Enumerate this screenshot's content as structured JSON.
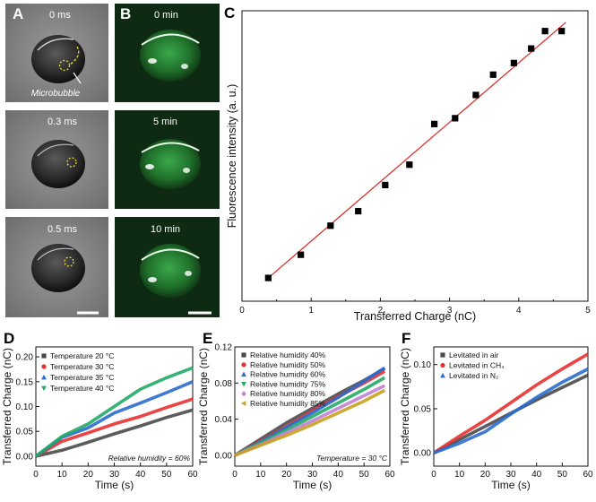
{
  "panels": {
    "A": {
      "label": "A",
      "frames": [
        {
          "time": "0 ms",
          "annotation": "Microbubble"
        },
        {
          "time": "0.3 ms"
        },
        {
          "time": "0.5 ms"
        }
      ]
    },
    "B": {
      "label": "B",
      "frames": [
        {
          "time": "0 min"
        },
        {
          "time": "5 min"
        },
        {
          "time": "10 min"
        }
      ]
    }
  },
  "chart_data": [
    {
      "panel": "C",
      "type": "scatter",
      "xlabel": "Transferred Charge (nC)",
      "ylabel": "Fluorescence intensity (a. u.)",
      "xlim": [
        0,
        5
      ],
      "xticks": [
        "0",
        "1",
        "2",
        "3",
        "4",
        "5"
      ],
      "marker_color": "#000000",
      "fit_color": "#e02020",
      "points": [
        [
          0.38,
          0.08
        ],
        [
          0.85,
          0.16
        ],
        [
          1.28,
          0.26
        ],
        [
          1.68,
          0.31
        ],
        [
          2.07,
          0.4
        ],
        [
          2.42,
          0.47
        ],
        [
          2.78,
          0.61
        ],
        [
          3.08,
          0.63
        ],
        [
          3.38,
          0.71
        ],
        [
          3.63,
          0.78
        ],
        [
          3.93,
          0.82
        ],
        [
          4.18,
          0.87
        ],
        [
          4.38,
          0.93
        ],
        [
          4.62,
          0.93
        ]
      ],
      "fit": [
        [
          0.38,
          0.08
        ],
        [
          4.68,
          0.96
        ]
      ]
    },
    {
      "panel": "D",
      "type": "line",
      "xlabel": "Time (s)",
      "ylabel": "Transferred Charge (nC)",
      "xlim": [
        0,
        60
      ],
      "ylim": [
        -0.02,
        0.22
      ],
      "xticks": [
        "0",
        "10",
        "20",
        "30",
        "40",
        "50",
        "60"
      ],
      "yticks": [
        "0.00",
        "0.05",
        "0.10",
        "0.15",
        "0.20"
      ],
      "note": "Relative humidity = 60%",
      "series": [
        {
          "name": "Temperature 20 °C",
          "marker": "square",
          "color": "#4a4a4a",
          "points": [
            [
              0,
              0.0
            ],
            [
              10,
              0.012
            ],
            [
              20,
              0.028
            ],
            [
              30,
              0.045
            ],
            [
              40,
              0.061
            ],
            [
              50,
              0.078
            ],
            [
              60,
              0.093
            ]
          ]
        },
        {
          "name": "Temperature 30 °C",
          "marker": "circle",
          "color": "#e83030",
          "points": [
            [
              0,
              0.0
            ],
            [
              10,
              0.03
            ],
            [
              20,
              0.047
            ],
            [
              30,
              0.065
            ],
            [
              40,
              0.08
            ],
            [
              50,
              0.098
            ],
            [
              60,
              0.115
            ]
          ]
        },
        {
          "name": "Temperature 35 °C",
          "marker": "triangle",
          "color": "#2a6ccf",
          "points": [
            [
              0,
              0.0
            ],
            [
              10,
              0.038
            ],
            [
              20,
              0.057
            ],
            [
              30,
              0.087
            ],
            [
              40,
              0.107
            ],
            [
              50,
              0.128
            ],
            [
              60,
              0.15
            ]
          ]
        },
        {
          "name": "Temperature 40 °C",
          "marker": "triangle-down",
          "color": "#22aa66",
          "points": [
            [
              0,
              0.0
            ],
            [
              10,
              0.04
            ],
            [
              20,
              0.065
            ],
            [
              30,
              0.1
            ],
            [
              40,
              0.135
            ],
            [
              50,
              0.158
            ],
            [
              60,
              0.178
            ]
          ]
        }
      ]
    },
    {
      "panel": "E",
      "type": "line",
      "xlabel": "Time (s)",
      "ylabel": "Transferred Charge (nC)",
      "xlim": [
        0,
        60
      ],
      "ylim": [
        -0.012,
        0.12
      ],
      "xticks": [
        "0",
        "10",
        "20",
        "30",
        "40",
        "50",
        "60"
      ],
      "yticks": [
        "0.00",
        "0.04",
        "0.08",
        "0.12"
      ],
      "note": "Temperature = 30 °C",
      "series": [
        {
          "name": "Relative humidity 40%",
          "marker": "square",
          "color": "#4a4a4a",
          "points": [
            [
              0,
              0.0
            ],
            [
              10,
              0.018
            ],
            [
              20,
              0.036
            ],
            [
              30,
              0.052
            ],
            [
              40,
              0.068
            ],
            [
              50,
              0.083
            ],
            [
              58,
              0.096
            ]
          ]
        },
        {
          "name": "Relative humidity 50%",
          "marker": "circle",
          "color": "#e83030",
          "points": [
            [
              0,
              0.0
            ],
            [
              10,
              0.016
            ],
            [
              20,
              0.032
            ],
            [
              30,
              0.049
            ],
            [
              40,
              0.065
            ],
            [
              50,
              0.08
            ],
            [
              58,
              0.093
            ]
          ]
        },
        {
          "name": "Relative humidity 60%",
          "marker": "triangle",
          "color": "#2a6ccf",
          "points": [
            [
              0,
              0.0
            ],
            [
              10,
              0.015
            ],
            [
              20,
              0.031
            ],
            [
              30,
              0.047
            ],
            [
              40,
              0.064
            ],
            [
              50,
              0.082
            ],
            [
              58,
              0.097
            ]
          ]
        },
        {
          "name": "Relative humidity 75%",
          "marker": "triangle-down",
          "color": "#22aa66",
          "points": [
            [
              0,
              0.0
            ],
            [
              10,
              0.014
            ],
            [
              20,
              0.028
            ],
            [
              30,
              0.043
            ],
            [
              40,
              0.058
            ],
            [
              50,
              0.073
            ],
            [
              58,
              0.086
            ]
          ]
        },
        {
          "name": "Relative humidity 80%",
          "marker": "diamond",
          "color": "#c080d0",
          "points": [
            [
              0,
              0.0
            ],
            [
              10,
              0.012
            ],
            [
              20,
              0.025
            ],
            [
              30,
              0.038
            ],
            [
              40,
              0.052
            ],
            [
              50,
              0.066
            ],
            [
              58,
              0.077
            ]
          ]
        },
        {
          "name": "Relative humidity 85%",
          "marker": "triangle-left",
          "color": "#c8a020",
          "points": [
            [
              0,
              0.0
            ],
            [
              10,
              0.011
            ],
            [
              20,
              0.022
            ],
            [
              30,
              0.034
            ],
            [
              40,
              0.047
            ],
            [
              50,
              0.06
            ],
            [
              58,
              0.072
            ]
          ]
        }
      ]
    },
    {
      "panel": "F",
      "type": "line",
      "xlabel": "Time (s)",
      "ylabel": "Transferred Charge (nC)",
      "xlim": [
        0,
        60
      ],
      "ylim": [
        -0.015,
        0.12
      ],
      "xticks": [
        "0",
        "10",
        "20",
        "30",
        "40",
        "50",
        "60"
      ],
      "yticks": [
        "0.00",
        "0.05",
        "0.10"
      ],
      "series": [
        {
          "name": "Levitated in air",
          "marker": "square",
          "color": "#4a4a4a",
          "points": [
            [
              0,
              0.0
            ],
            [
              10,
              0.015
            ],
            [
              20,
              0.03
            ],
            [
              30,
              0.045
            ],
            [
              40,
              0.06
            ],
            [
              50,
              0.074
            ],
            [
              60,
              0.088
            ]
          ]
        },
        {
          "name": "Levitated in CH₄",
          "marker": "circle",
          "color": "#e83030",
          "points": [
            [
              0,
              0.0
            ],
            [
              10,
              0.019
            ],
            [
              20,
              0.037
            ],
            [
              30,
              0.057
            ],
            [
              40,
              0.077
            ],
            [
              50,
              0.095
            ],
            [
              60,
              0.112
            ]
          ]
        },
        {
          "name": "Levitated in N₂",
          "marker": "triangle",
          "color": "#2a6ccf",
          "points": [
            [
              0,
              0.0
            ],
            [
              10,
              0.011
            ],
            [
              20,
              0.024
            ],
            [
              30,
              0.044
            ],
            [
              40,
              0.063
            ],
            [
              50,
              0.08
            ],
            [
              60,
              0.095
            ]
          ]
        }
      ]
    }
  ]
}
